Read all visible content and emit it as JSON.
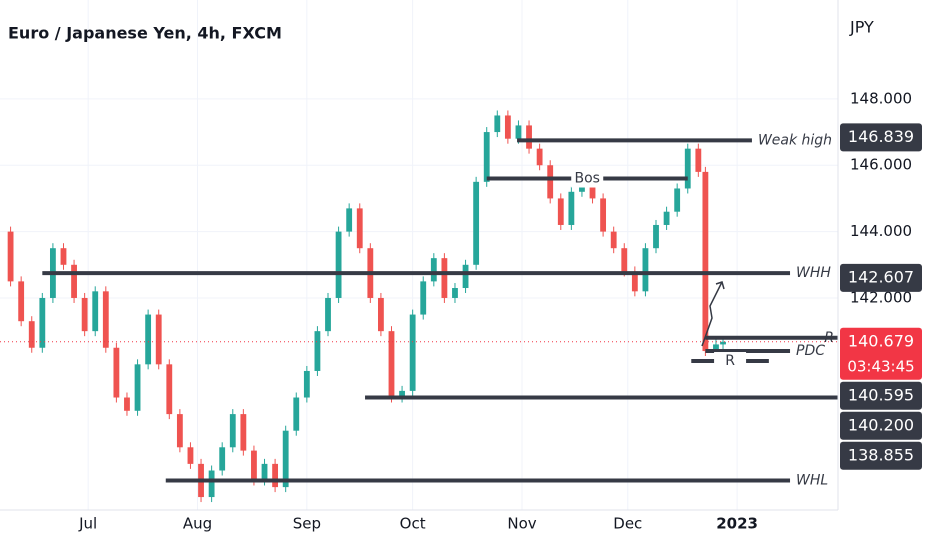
{
  "chart_data": {
    "type": "candlestick",
    "title": "Euro / Japanese Yen, 4h, FXCM",
    "currency": "JPY",
    "up_color": "#26a69a",
    "down_color": "#ef5350",
    "grid": true,
    "xlim": [
      5,
      242.6
    ],
    "ylim": [
      135.61,
      150.98
    ],
    "xticks": [
      {
        "value": 30,
        "label": "Jul"
      },
      {
        "value": 61,
        "label": "Aug"
      },
      {
        "value": 92,
        "label": "Sep"
      },
      {
        "value": 122,
        "label": "Oct"
      },
      {
        "value": 153,
        "label": "Nov"
      },
      {
        "value": 183,
        "label": "Dec"
      },
      {
        "value": 214,
        "label": "2023"
      }
    ],
    "yticks": [
      {
        "value": 148,
        "label": "148.000"
      },
      {
        "value": 146,
        "label": "146.000"
      },
      {
        "value": 144,
        "label": "144.000"
      },
      {
        "value": 142,
        "label": "142.000"
      }
    ],
    "x": [
      5,
      8,
      11,
      14,
      17,
      20,
      23,
      26,
      29,
      32,
      35,
      38,
      41,
      44,
      47,
      50,
      53,
      56,
      59,
      62,
      65,
      68,
      71,
      74,
      77,
      80,
      83,
      86,
      89,
      92,
      95,
      98,
      101,
      104,
      107,
      110,
      113,
      116,
      119,
      122,
      125,
      128,
      131,
      134,
      137,
      140,
      143,
      146,
      149,
      152,
      155,
      158,
      161,
      164,
      167,
      170,
      173,
      176,
      179,
      182,
      185,
      188,
      191,
      194,
      197,
      200,
      203,
      205,
      208,
      210
    ],
    "close": [
      144.0,
      142.5,
      141.3,
      140.5,
      142.0,
      143.5,
      143.0,
      142.0,
      141.0,
      142.2,
      140.5,
      139.0,
      138.6,
      140.0,
      141.5,
      140.0,
      138.5,
      137.5,
      137.0,
      136.0,
      136.8,
      137.5,
      138.5,
      137.4,
      136.5,
      137.0,
      136.3,
      138.0,
      139.0,
      139.8,
      141.0,
      142.0,
      144.0,
      144.7,
      143.5,
      142.0,
      141.0,
      139.0,
      139.2,
      141.5,
      142.5,
      143.2,
      142.0,
      142.3,
      143.0,
      145.5,
      147.0,
      147.5,
      146.8,
      147.2,
      146.5,
      146.0,
      145.0,
      144.2,
      145.2,
      145.6,
      145.0,
      144.0,
      143.5,
      142.8,
      142.2,
      143.5,
      144.2,
      144.6,
      145.3,
      146.5,
      145.8,
      140.4,
      140.6,
      140.68
    ],
    "last_price": 140.679,
    "levels": [
      {
        "label": "Weak high",
        "price": 146.75,
        "x": [
          151.6,
          218.2
        ],
        "label_position": "end"
      },
      {
        "label": "Bos",
        "price": 145.6,
        "x": [
          143,
          200
        ],
        "label_position": "middle"
      },
      {
        "label": "WHH",
        "price": 142.75,
        "x": [
          17,
          229
        ],
        "label_position": "end"
      },
      {
        "price": 139.0,
        "x": [
          108.5,
          242.6
        ]
      },
      {
        "label": "R",
        "price": 140.8,
        "x": [
          205,
          242.6
        ],
        "label_position": "end"
      },
      {
        "label": "PDC",
        "price": 140.4,
        "x": [
          205,
          229
        ],
        "label_position": "end"
      },
      {
        "label": "R",
        "price": 140.1,
        "x": [
          201,
          223
        ],
        "label_position": "middle"
      },
      {
        "label": "WHL",
        "price": 136.5,
        "x": [
          52,
          229
        ],
        "label_position": "end"
      }
    ],
    "price_tags": [
      {
        "value": 146.839,
        "label": "146.839",
        "color": "#363a45"
      },
      {
        "value": 142.607,
        "label": "142.607",
        "color": "#363a45"
      },
      {
        "value": 140.679,
        "label": "140.679",
        "color": "#f23645",
        "countdown": "03:43:45"
      },
      {
        "value": 140.595,
        "label": "140.595",
        "color": "#363a45"
      },
      {
        "value": 140.2,
        "label": "140.200",
        "color": "#363a45"
      },
      {
        "value": 138.855,
        "label": "138.855",
        "color": "#363a45"
      }
    ]
  }
}
